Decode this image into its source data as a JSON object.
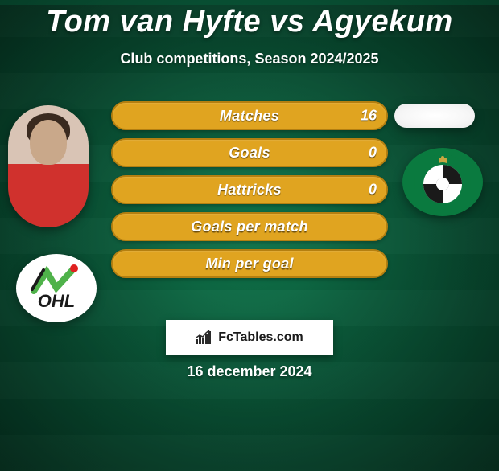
{
  "title": "Tom van Hyfte vs Agyekum",
  "subtitle": "Club competitions, Season 2024/2025",
  "date": "16 december 2024",
  "watermark": "FcTables.com",
  "colors": {
    "pill_bg": "#e0a420",
    "pill_border": "#b47f10",
    "pill_bg_alt": "#0a5a3a",
    "pill_border_alt": "#e0a420",
    "club2_green": "#0a7a3f",
    "text": "#ffffff"
  },
  "stats": [
    {
      "label": "Matches",
      "value1": "16",
      "filled": true
    },
    {
      "label": "Goals",
      "value1": "0",
      "filled": true
    },
    {
      "label": "Hattricks",
      "value1": "0",
      "filled": true
    },
    {
      "label": "Goals per match",
      "value1": "",
      "filled": false
    },
    {
      "label": "Min per goal",
      "value1": "",
      "filled": false
    }
  ]
}
